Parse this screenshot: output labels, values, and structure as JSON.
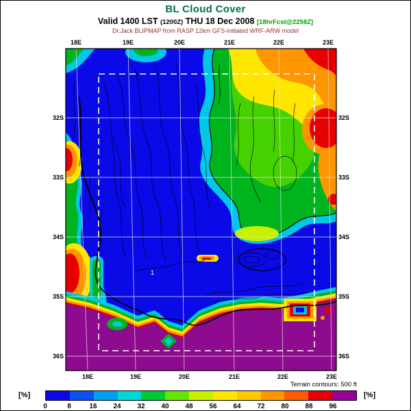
{
  "header": {
    "title": "BL Cloud Cover",
    "valid_prefix": "Valid 1400 LST",
    "valid_zulu": "(1200Z)",
    "valid_date": "THU 18 Dec 2008",
    "valid_fcst": "[18hrFcst@2258Z]",
    "model_line": "Dr.Jack BLIPMAP from RASP 12km GFS-initiated WRF-ARW model"
  },
  "map": {
    "lon_labels_top": [
      "18E",
      "19E",
      "20E",
      "21E",
      "22E",
      "23E"
    ],
    "lon_labels_bottom": [
      "18E",
      "19E",
      "20E",
      "21E",
      "22E",
      "23E"
    ],
    "lat_labels_left": [
      "32S",
      "33S",
      "34S",
      "35S",
      "36S"
    ],
    "lat_labels_right": [
      "32S",
      "33S",
      "34S",
      "35S",
      "36S"
    ],
    "annotation": "1"
  },
  "colorbar": {
    "units_label": "[%]",
    "note": "Terrain contours: 500 ft",
    "ticks": [
      "0",
      "8",
      "16",
      "24",
      "32",
      "40",
      "48",
      "56",
      "64",
      "72",
      "80",
      "88",
      "96"
    ],
    "colors": [
      "#0A0AE8",
      "#0A50F5",
      "#00A0F0",
      "#00D8D8",
      "#00C832",
      "#64E600",
      "#C8F000",
      "#FFE600",
      "#FFC800",
      "#FF9600",
      "#FF5A00",
      "#E60000",
      "#960096"
    ]
  }
}
